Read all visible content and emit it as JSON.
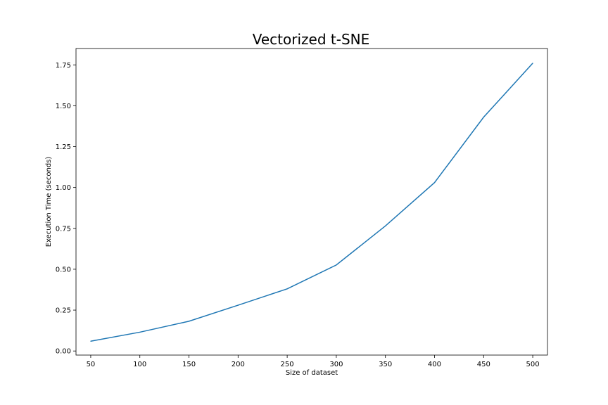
{
  "chart_data": {
    "type": "line",
    "title": "Vectorized t-SNE",
    "xlabel": "Size of dataset",
    "ylabel": "Execution Time (seconds)",
    "xlim": [
      35,
      515
    ],
    "ylim": [
      -0.025,
      1.85
    ],
    "xticks": [
      50,
      100,
      150,
      200,
      250,
      300,
      350,
      400,
      450,
      500
    ],
    "xtick_labels": [
      "50",
      "100",
      "150",
      "200",
      "250",
      "300",
      "350",
      "400",
      "450",
      "500"
    ],
    "yticks": [
      0.0,
      0.25,
      0.5,
      0.75,
      1.0,
      1.25,
      1.5,
      1.75
    ],
    "ytick_labels": [
      "0.00",
      "0.25",
      "0.50",
      "0.75",
      "1.00",
      "1.25",
      "1.50",
      "1.75"
    ],
    "grid": false,
    "series": [
      {
        "color": "#1f77b4",
        "x": [
          50,
          100,
          150,
          200,
          250,
          300,
          350,
          400,
          450,
          500
        ],
        "y": [
          0.06,
          0.115,
          0.182,
          0.28,
          0.38,
          0.526,
          0.765,
          1.03,
          1.43,
          1.76
        ]
      }
    ]
  }
}
